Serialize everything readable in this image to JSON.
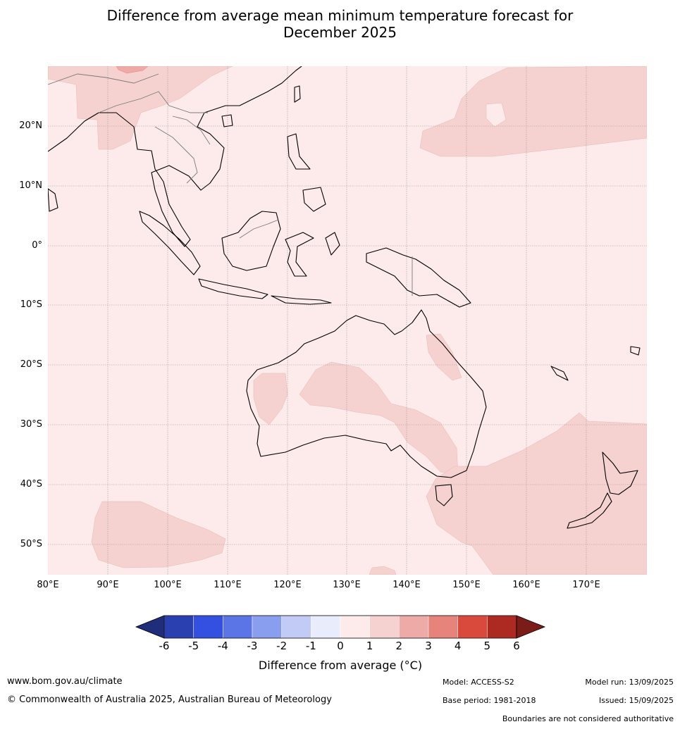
{
  "title_line1": "Difference from average mean minimum temperature forecast for",
  "title_line2": "December 2025",
  "lat_labels": [
    "20°N",
    "10°N",
    "0°",
    "10°S",
    "20°S",
    "30°S",
    "40°S",
    "50°S"
  ],
  "lon_labels": [
    "80°E",
    "90°E",
    "100°E",
    "110°E",
    "120°E",
    "130°E",
    "140°E",
    "150°E",
    "160°E",
    "170°E"
  ],
  "colorbar": {
    "ticks": [
      "-6",
      "-5",
      "-4",
      "-3",
      "-2",
      "-1",
      "0",
      "1",
      "2",
      "3",
      "4",
      "5",
      "6"
    ],
    "colors": [
      "#1f2d7a",
      "#2a3fb0",
      "#3350e0",
      "#5b74e6",
      "#8a9eef",
      "#c2cbf5",
      "#e9ecfb",
      "#fcebea",
      "#f5d2d0",
      "#edaaa6",
      "#e6847c",
      "#da4a3c",
      "#ac2a22",
      "#7a1c18"
    ],
    "label": "Difference from average (°C)"
  },
  "colors": {
    "background_0_1": "#fcebea",
    "band_1_2": "#f5d2d0",
    "band_2_3": "#edaaa6",
    "band_3_4": "#e6847c"
  },
  "footer": {
    "website": "www.bom.gov.au/climate",
    "copyright": "© Commonwealth of Australia 2025, Australian Bureau of Meteorology",
    "model": "Model: ACCESS-S2",
    "base_period": "Base period: 1981-2018",
    "model_run": "Model run: 13/09/2025",
    "issued": "Issued: 15/09/2025",
    "disclaimer": "Boundaries are not considered authoritative"
  }
}
